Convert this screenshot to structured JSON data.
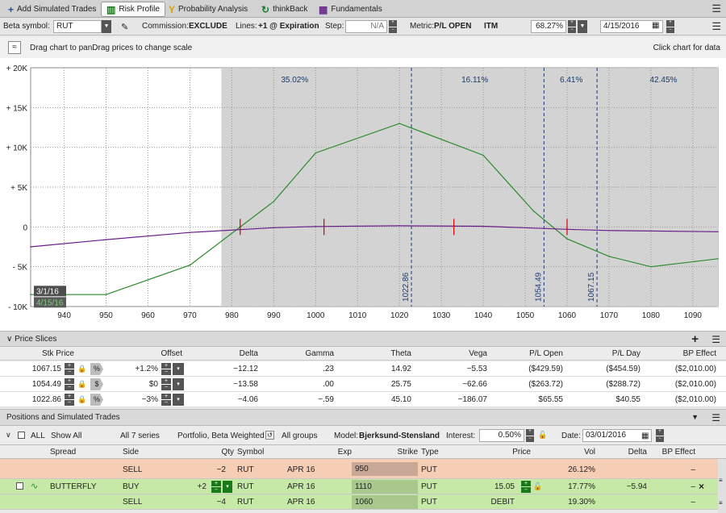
{
  "tabs": [
    {
      "label": "Add Simulated Trades",
      "icon": "plus-icon"
    },
    {
      "label": "Risk Profile",
      "icon": "risk-profile-icon",
      "active": true
    },
    {
      "label": "Probability Analysis",
      "icon": "probability-icon"
    },
    {
      "label": "thinkBack",
      "icon": "thinkback-icon"
    },
    {
      "label": "Fundamentals",
      "icon": "fundamentals-icon"
    }
  ],
  "controls": {
    "beta_symbol_label": "Beta symbol:",
    "beta_symbol_value": "RUT",
    "commission_label": "Commission:",
    "commission_value": "EXCLUDE",
    "lines_label": "Lines:",
    "lines_value": "+1 @ Expiration",
    "step_label": "Step:",
    "step_value": "N/A",
    "metric_label": "Metric:",
    "metric_value": "P/L OPEN",
    "itm_label": "ITM",
    "itm_value": "68.27%",
    "date_value": "4/15/2016"
  },
  "drag_hint": "Drag chart to panDrag prices to change scale",
  "click_hint": "Click chart for data",
  "chart_data": {
    "type": "line",
    "x_ticks": [
      "940",
      "950",
      "960",
      "970",
      "980",
      "990",
      "1000",
      "1010",
      "1020",
      "1030",
      "1040",
      "1050",
      "1060",
      "1070",
      "1080",
      "1090"
    ],
    "y_ticks": [
      "+ 20K",
      "+ 15K",
      "+ 10K",
      "+ 5K",
      "0",
      "- 5K",
      "- 10K"
    ],
    "xlim": [
      932,
      1096
    ],
    "ylim": [
      -10000,
      20000
    ],
    "shaded_region_start": 977.5,
    "probabilities": [
      {
        "label": "35.02%",
        "x": 995
      },
      {
        "label": "16.11%",
        "x": 1038
      },
      {
        "label": "6.41%",
        "x": 1061
      },
      {
        "label": "42.45%",
        "x": 1083
      }
    ],
    "vertical_markers": [
      {
        "label": "1022.86",
        "x": 1022.86
      },
      {
        "label": "1054.49",
        "x": 1054.49
      },
      {
        "label": "1067.15",
        "x": 1067.15
      }
    ],
    "date_labels": [
      "3/1/16",
      "4/15/16"
    ],
    "series": [
      {
        "name": "4/15/16",
        "color": "#2a8a2a",
        "x": [
          932,
          950,
          970,
          990,
          1000,
          1020,
          1040,
          1052,
          1060,
          1070,
          1080,
          1096
        ],
        "y": [
          -8500,
          -8500,
          -4800,
          3200,
          9300,
          13000,
          9000,
          2000,
          -1500,
          -3700,
          -5000,
          -4000
        ]
      },
      {
        "name": "3/1/16",
        "color": "#6a1d8a",
        "x": [
          932,
          950,
          970,
          990,
          1000,
          1020,
          1040,
          1060,
          1070,
          1096
        ],
        "y": [
          -2500,
          -1600,
          -700,
          -100,
          50,
          150,
          80,
          -300,
          -450,
          -600
        ]
      }
    ],
    "breakeven_marks": [
      982,
      1002,
      1033,
      1060
    ]
  },
  "price_slices": {
    "title": "Price Slices",
    "columns": [
      "Stk Price",
      "Offset",
      "Delta",
      "Gamma",
      "Theta",
      "Vega",
      "P/L Open",
      "P/L Day",
      "BP Effect"
    ],
    "rows": [
      {
        "stk": "1067.15",
        "mode": "%",
        "offset": "+1.2%",
        "delta": "−12.12",
        "gamma": ".23",
        "theta": "14.92",
        "vega": "−5.53",
        "pl_open": "($429.59)",
        "pl_day": "($454.59)",
        "bp": "($2,010.00)"
      },
      {
        "stk": "1054.49",
        "mode": "$",
        "offset": "$0",
        "delta": "−13.58",
        "gamma": ".00",
        "theta": "25.75",
        "vega": "−62.66",
        "pl_open": "($263.72)",
        "pl_day": "($288.72)",
        "bp": "($2,010.00)"
      },
      {
        "stk": "1022.86",
        "mode": "%",
        "offset": "−3%",
        "delta": "−4.06",
        "gamma": "−.59",
        "theta": "45.10",
        "vega": "−186.07",
        "pl_open": "$65.55",
        "pl_day": "$40.55",
        "bp": "($2,010.00)"
      }
    ]
  },
  "positions": {
    "title": "Positions and Simulated Trades",
    "all_label": "ALL",
    "show_all": "Show All",
    "series_count": "All 7 series",
    "portfolio": "Portfolio, Beta Weighted",
    "groups": "All groups",
    "model_label": "Model:",
    "model_value": "Bjerksund-Stensland",
    "interest_label": "Interest:",
    "interest_value": "0.50%",
    "date_label": "Date:",
    "date_value": "03/01/2016",
    "columns": [
      "Spread",
      "Side",
      "Qty",
      "Symbol",
      "Exp",
      "Strike",
      "Type",
      "Price",
      "Vol",
      "Delta",
      "BP Effect"
    ],
    "rows": [
      {
        "spread": "",
        "side": "SELL",
        "qty": "−2",
        "symbol": "RUT",
        "exp": "APR 16",
        "strike": "950",
        "type": "PUT",
        "price": "",
        "vol": "26.12%",
        "delta": "",
        "bp": "–"
      },
      {
        "spread": "BUTTERFLY",
        "side": "BUY",
        "qty": "+2",
        "symbol": "RUT",
        "exp": "APR 16",
        "strike": "1110",
        "type": "PUT",
        "price": "15.05",
        "vol": "17.77%",
        "delta": "−5.94",
        "bp": "–"
      },
      {
        "spread": "",
        "side": "SELL",
        "qty": "−4",
        "symbol": "RUT",
        "exp": "APR 16",
        "strike": "1060",
        "type": "PUT",
        "price": "DEBIT",
        "vol": "19.30%",
        "delta": "",
        "bp": "–"
      }
    ]
  }
}
